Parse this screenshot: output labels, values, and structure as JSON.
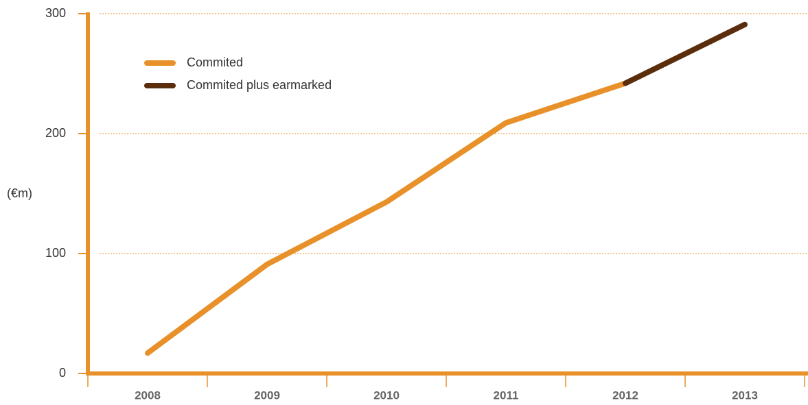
{
  "chart_data": {
    "type": "line",
    "y_label": "(€m)",
    "categories": [
      "2008",
      "2009",
      "2010",
      "2011",
      "2012",
      "2013"
    ],
    "series": [
      {
        "name": "Commited",
        "color": "#e8912a",
        "values": [
          17,
          91,
          143,
          209,
          242,
          null
        ]
      },
      {
        "name": "Commited plus earmarked",
        "color": "#5a2d0c",
        "values": [
          null,
          null,
          null,
          null,
          242,
          291
        ]
      }
    ],
    "ylim": [
      0,
      300
    ],
    "yticks": [
      0,
      100,
      200,
      300
    ],
    "grid": true,
    "legend": "upper left",
    "axis_color": "#e8912a"
  }
}
